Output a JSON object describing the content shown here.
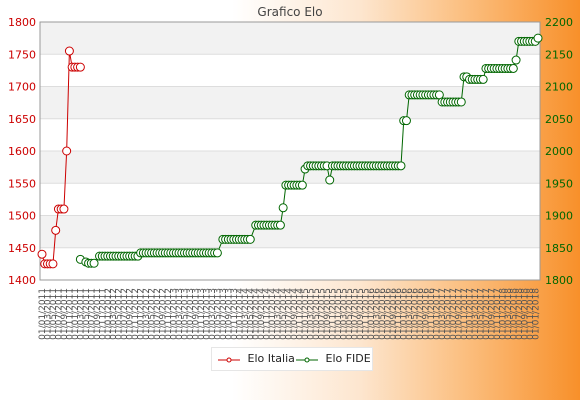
{
  "chart_data": {
    "type": "line",
    "title": "Grafico Elo",
    "left_axis": {
      "ylim": [
        1400,
        1800
      ],
      "ticks": [
        1400,
        1450,
        1500,
        1550,
        1600,
        1650,
        1700,
        1750,
        1800
      ],
      "color": "#cc0000"
    },
    "right_axis": {
      "ylim": [
        1800,
        2200
      ],
      "ticks": [
        1800,
        1850,
        1900,
        1950,
        2000,
        2050,
        2100,
        2150,
        2200
      ],
      "color": "#006600"
    },
    "x_tick_labels": "illegible overlapping date labels",
    "grid": true,
    "legend_position": "bottom-center",
    "series": [
      {
        "name": "Elo Italia",
        "axis": "left",
        "color": "#cc0000",
        "values": [
          1440,
          1425,
          1425,
          1425,
          1425,
          1477,
          1510,
          1510,
          1510,
          1600,
          1755,
          1730,
          1730,
          1730,
          1730
        ]
      },
      {
        "name": "Elo FIDE",
        "axis": "right",
        "color": "#006600",
        "segments": [
          [
            14,
            1832,
            1
          ],
          [
            16,
            1828,
            1
          ],
          [
            17,
            1826,
            3
          ],
          [
            21,
            1837,
            15
          ],
          [
            36,
            1842,
            29
          ],
          [
            66,
            1863,
            11
          ],
          [
            78,
            1885,
            10
          ],
          [
            88,
            1912,
            1
          ],
          [
            89,
            1947,
            7
          ],
          [
            96,
            1972,
            1
          ],
          [
            97,
            1977,
            8
          ],
          [
            105,
            1955,
            1
          ],
          [
            106,
            1977,
            26
          ],
          [
            132,
            2047,
            2
          ],
          [
            134,
            2087,
            12
          ],
          [
            146,
            2076,
            8
          ],
          [
            154,
            2115,
            2
          ],
          [
            156,
            2111,
            6
          ],
          [
            162,
            2128,
            11
          ],
          [
            173,
            2141,
            1
          ],
          [
            174,
            2170,
            7
          ],
          [
            181,
            2175,
            1
          ]
        ]
      }
    ]
  },
  "legend": [
    {
      "name": "Elo Italia",
      "color": "#cc0000"
    },
    {
      "name": "Elo FIDE",
      "color": "#006600"
    }
  ]
}
